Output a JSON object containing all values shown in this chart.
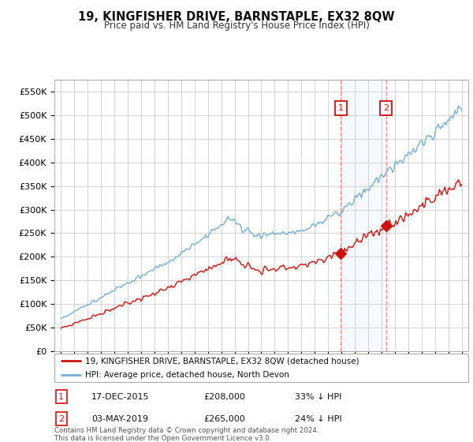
{
  "title": "19, KINGFISHER DRIVE, BARNSTAPLE, EX32 8QW",
  "subtitle": "Price paid vs. HM Land Registry's House Price Index (HPI)",
  "ylabel_ticks": [
    "£0",
    "£50K",
    "£100K",
    "£150K",
    "£200K",
    "£250K",
    "£300K",
    "£350K",
    "£400K",
    "£450K",
    "£500K",
    "£550K"
  ],
  "ytick_values": [
    0,
    50000,
    100000,
    150000,
    200000,
    250000,
    300000,
    350000,
    400000,
    450000,
    500000,
    550000
  ],
  "hpi_color": "#7aaed4",
  "price_color": "#cc1111",
  "marker1_date_x": 2015.96,
  "marker1_price": 208000,
  "marker1_label": "17-DEC-2015",
  "marker1_text": "£208,000",
  "marker1_pct": "33% ↓ HPI",
  "marker2_date_x": 2019.34,
  "marker2_price": 265000,
  "marker2_label": "03-MAY-2019",
  "marker2_text": "£265,000",
  "marker2_pct": "24% ↓ HPI",
  "legend_line1": "19, KINGFISHER DRIVE, BARNSTAPLE, EX32 8QW (detached house)",
  "legend_line2": "HPI: Average price, detached house, North Devon",
  "footer": "Contains HM Land Registry data © Crown copyright and database right 2024.\nThis data is licensed under the Open Government Licence v3.0.",
  "background_color": "#ffffff",
  "grid_color": "#cccccc",
  "shade_color": "#ddeeff",
  "xlim": [
    1994.5,
    2025.5
  ],
  "ylim": [
    0,
    575000
  ]
}
